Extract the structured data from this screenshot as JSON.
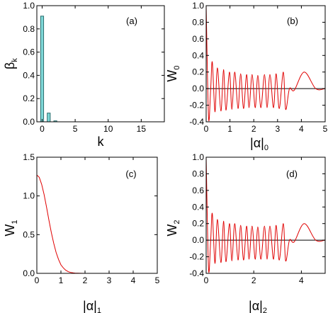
{
  "chart_data": [
    {
      "id": "a",
      "type": "bar",
      "panel_label": "(a)",
      "xlabel": "k",
      "ylabel": "β",
      "ylabel_sub": "k",
      "xlim": [
        -0.8,
        18.5
      ],
      "ylim": [
        0,
        1.0
      ],
      "xticks": [
        0,
        5,
        10,
        15
      ],
      "yticks": [
        0.0,
        0.2,
        0.4,
        0.6,
        0.8,
        1.0
      ],
      "tick_labels_x": [
        "0",
        "5",
        "10",
        "15"
      ],
      "tick_labels_y": [
        "0.0",
        "0.2",
        "0.4",
        "0.6",
        "0.8",
        "1.0"
      ],
      "bar_color": "#7fd8d8",
      "x": [
        0,
        1,
        2
      ],
      "values": [
        0.91,
        0.075,
        0.008
      ]
    },
    {
      "id": "b",
      "type": "line",
      "panel_label": "(b)",
      "xlabel": "|α|",
      "xlabel_sub": "0",
      "ylabel": "W",
      "ylabel_sub": "0",
      "xlim": [
        0,
        5
      ],
      "ylim": [
        -0.4,
        1.0
      ],
      "xticks": [
        0,
        1,
        2,
        3,
        4,
        5
      ],
      "yticks": [
        -0.4,
        -0.2,
        0.0,
        0.2,
        0.4,
        0.6,
        0.8,
        1.0
      ],
      "tick_labels_x": [
        "0",
        "1",
        "2",
        "3",
        "4",
        "5"
      ],
      "tick_labels_y": [
        "-0.4",
        "-0.2",
        "0.0",
        "0.2",
        "0.4",
        "0.6",
        "0.8",
        "1.0"
      ],
      "line_color": "#e00000",
      "zero_line": true,
      "x": [
        0,
        0.1,
        0.19,
        0.26,
        0.37,
        0.47,
        0.62,
        0.73,
        0.83,
        0.98,
        1.08,
        1.2,
        1.34,
        1.45,
        1.57,
        1.7,
        1.8,
        1.93,
        2.06,
        2.17,
        2.3,
        2.45,
        2.56,
        2.68,
        2.83,
        2.94,
        3.07,
        3.24,
        3.34,
        3.5,
        3.7,
        4.12,
        4.6,
        5.0
      ],
      "y": [
        1.0,
        -0.35,
        0.0,
        0.32,
        -0.28,
        0.25,
        -0.27,
        0.23,
        -0.26,
        0.2,
        -0.25,
        0.2,
        -0.24,
        0.18,
        -0.24,
        0.17,
        -0.23,
        0.17,
        -0.23,
        0.16,
        -0.23,
        0.17,
        -0.23,
        0.17,
        -0.23,
        0.18,
        -0.24,
        0.2,
        -0.25,
        0.0,
        -0.02,
        0.2,
        0.0,
        0.0
      ]
    },
    {
      "id": "c",
      "type": "line",
      "panel_label": "(c)",
      "xlabel": "|α|",
      "xlabel_sub": "1",
      "ylabel": "W",
      "ylabel_sub": "1",
      "xlim": [
        0,
        5
      ],
      "ylim": [
        0,
        1.5
      ],
      "xticks": [
        0,
        1,
        2,
        3,
        4,
        5
      ],
      "yticks": [
        0.0,
        0.5,
        1.0,
        1.5
      ],
      "tick_labels_x": [
        "0",
        "1",
        "2",
        "3",
        "4",
        "5"
      ],
      "tick_labels_y": [
        "0.0",
        "0.5",
        "1.0",
        "1.5"
      ],
      "line_color": "#e00000",
      "x": [
        0,
        0.1,
        0.2,
        0.3,
        0.4,
        0.5,
        0.6,
        0.7,
        0.8,
        0.9,
        1.0,
        1.1,
        1.2,
        1.3,
        1.4,
        1.5,
        1.6,
        1.7,
        1.8,
        2.0,
        2.2,
        2.5,
        3.0,
        4.0,
        5.0
      ],
      "y": [
        1.27,
        1.24,
        1.15,
        1.02,
        0.86,
        0.69,
        0.53,
        0.39,
        0.27,
        0.18,
        0.11,
        0.07,
        0.04,
        0.022,
        0.012,
        0.006,
        0.003,
        0.0015,
        0.0007,
        0.0001,
        0.0,
        0.0,
        0.0,
        0.0,
        0.0
      ]
    },
    {
      "id": "d",
      "type": "line",
      "panel_label": "(d)",
      "xlabel": "|α|",
      "xlabel_sub": "2",
      "ylabel": "W",
      "ylabel_sub": "2",
      "xlim": [
        0,
        5
      ],
      "ylim": [
        -0.4,
        1.0
      ],
      "xticks": [
        0,
        2,
        4
      ],
      "yticks": [
        -0.4,
        -0.2,
        0.0,
        0.2,
        0.4,
        0.6,
        0.8,
        1.0
      ],
      "tick_labels_x": [
        "0",
        "2",
        "4"
      ],
      "tick_labels_y": [
        "-0.4",
        "-0.2",
        "0.0",
        "0.2",
        "0.4",
        "0.6",
        "0.8",
        "1.0"
      ],
      "line_color": "#e00000",
      "zero_line": true,
      "x": [
        0,
        0.1,
        0.19,
        0.26,
        0.37,
        0.47,
        0.62,
        0.73,
        0.83,
        0.98,
        1.08,
        1.2,
        1.34,
        1.45,
        1.57,
        1.7,
        1.8,
        1.93,
        2.06,
        2.17,
        2.3,
        2.45,
        2.56,
        2.68,
        2.83,
        2.94,
        3.07,
        3.24,
        3.34,
        3.5,
        3.7,
        4.12,
        4.6,
        5.0
      ],
      "y": [
        1.0,
        -0.35,
        0.0,
        0.32,
        -0.28,
        0.25,
        -0.27,
        0.23,
        -0.26,
        0.2,
        -0.25,
        0.2,
        -0.24,
        0.18,
        -0.24,
        0.17,
        -0.23,
        0.17,
        -0.23,
        0.16,
        -0.23,
        0.17,
        -0.23,
        0.17,
        -0.23,
        0.18,
        -0.24,
        0.2,
        -0.25,
        0.0,
        -0.02,
        0.2,
        0.0,
        0.0
      ]
    }
  ]
}
